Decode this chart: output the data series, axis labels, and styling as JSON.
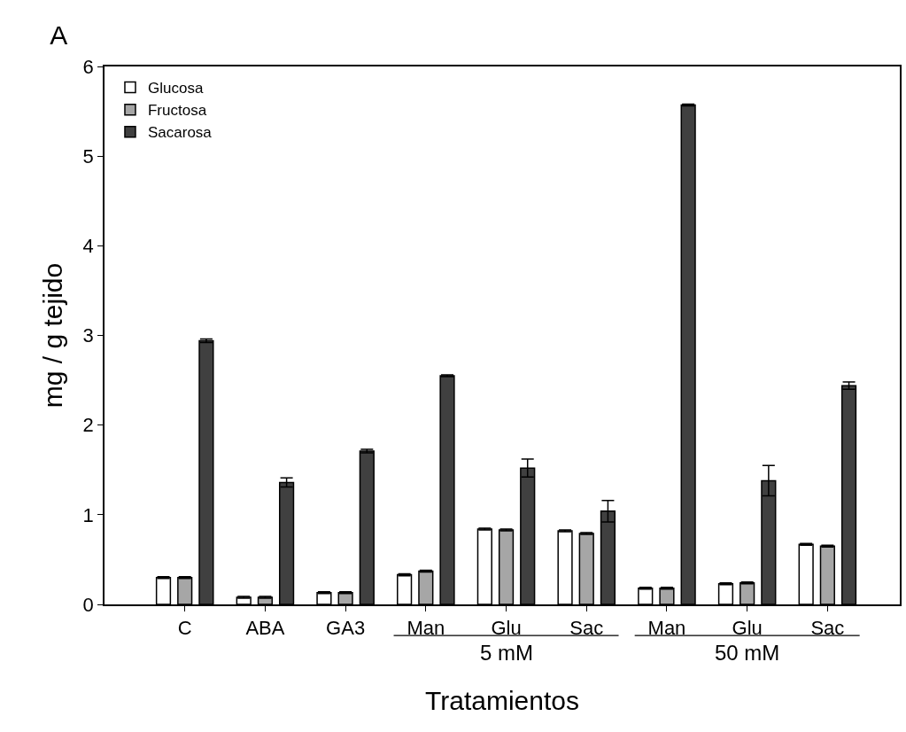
{
  "chart_data": {
    "type": "bar",
    "title": "A",
    "xlabel": "Tratamientos",
    "ylabel": "mg / g tejido",
    "categories": [
      "C",
      "ABA",
      "GA3",
      "Man",
      "Glu",
      "Sac",
      "Man",
      "Glu",
      "Sac"
    ],
    "series": [
      {
        "name": "Glucosa",
        "color": "#ffffff",
        "values": [
          0.3,
          0.08,
          0.13,
          0.33,
          0.84,
          0.82,
          0.18,
          0.23,
          0.67
        ],
        "errors": [
          0.01,
          0.01,
          0.01,
          0.01,
          0.01,
          0.01,
          0.01,
          0.01,
          0.01
        ]
      },
      {
        "name": "Fructosa",
        "color": "#a6a6a6",
        "values": [
          0.3,
          0.08,
          0.13,
          0.37,
          0.83,
          0.79,
          0.18,
          0.24,
          0.65
        ],
        "errors": [
          0.01,
          0.01,
          0.01,
          0.01,
          0.01,
          0.01,
          0.01,
          0.01,
          0.01
        ]
      },
      {
        "name": "Sacarosa",
        "color": "#404040",
        "values": [
          2.94,
          1.36,
          1.71,
          2.55,
          1.52,
          1.04,
          5.57,
          1.38,
          2.44
        ],
        "errors": [
          0.02,
          0.05,
          0.02,
          0.01,
          0.1,
          0.12,
          0.01,
          0.17,
          0.04
        ]
      }
    ],
    "ylim": [
      0,
      6
    ],
    "yticks": [
      0,
      1,
      2,
      3,
      4,
      5,
      6
    ],
    "legend": "top left",
    "annotations": [
      "5 mM",
      "50 mM"
    ]
  }
}
